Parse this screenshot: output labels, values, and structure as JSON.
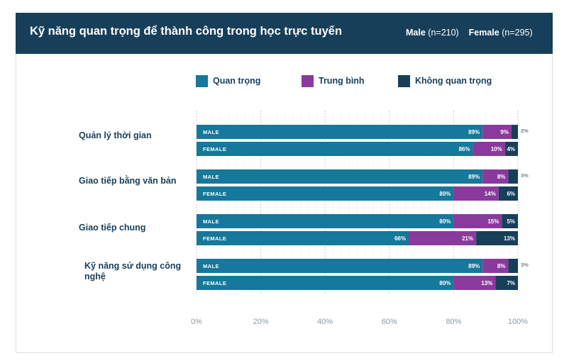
{
  "header": {
    "title": "Kỹ năng quan trọng để thành công trong học trực tuyến",
    "male_label": "Male",
    "male_n": "(n=210)",
    "female_label": "Female",
    "female_n": "(n=295)"
  },
  "colors": {
    "header_bg": "#173f59",
    "quan_trong": "#16789a",
    "trung_binh": "#8a3a9d",
    "khong_quan_trong": "#173f59",
    "label_text": "#173f59",
    "tick_text": "#8f9aa5"
  },
  "chart_data": {
    "type": "bar",
    "orientation": "horizontal",
    "stacked": true,
    "xlim": [
      0,
      100
    ],
    "xticks": [
      "0%",
      "20%",
      "40%",
      "60%",
      "80%",
      "100%"
    ],
    "grid": true,
    "legend_position": "top",
    "series": [
      {
        "name": "Quan trọng",
        "color": "#16789a"
      },
      {
        "name": "Trung bình",
        "color": "#8a3a9d"
      },
      {
        "name": "Không quan trọng",
        "color": "#173f59"
      }
    ],
    "categories": [
      {
        "label": "Quản lý thời gian",
        "rows": [
          {
            "group": "MALE",
            "values": [
              89,
              9,
              2
            ],
            "labels": [
              "89%",
              "9%",
              "2%"
            ]
          },
          {
            "group": "FEMALE",
            "values": [
              86,
              10,
              4
            ],
            "labels": [
              "86%",
              "10%",
              "4%"
            ]
          }
        ]
      },
      {
        "label": "Giao tiếp bằng văn bản",
        "rows": [
          {
            "group": "MALE",
            "values": [
              89,
              8,
              3
            ],
            "labels": [
              "89%",
              "8%",
              "3%"
            ]
          },
          {
            "group": "FEMALE",
            "values": [
              80,
              14,
              6
            ],
            "labels": [
              "80%",
              "14%",
              "6%"
            ]
          }
        ]
      },
      {
        "label": "Giao tiếp chung",
        "rows": [
          {
            "group": "MALE",
            "values": [
              80,
              15,
              5
            ],
            "labels": [
              "80%",
              "15%",
              "5%"
            ]
          },
          {
            "group": "FEMALE",
            "values": [
              66,
              21,
              13
            ],
            "labels": [
              "66%",
              "21%",
              "13%"
            ]
          }
        ]
      },
      {
        "label": "Kỹ năng sử dụng công nghệ",
        "rows": [
          {
            "group": "MALE",
            "values": [
              89,
              8,
              3
            ],
            "labels": [
              "89%",
              "8%",
              "3%"
            ]
          },
          {
            "group": "FEMALE",
            "values": [
              80,
              13,
              7
            ],
            "labels": [
              "80%",
              "13%",
              "7%"
            ]
          }
        ]
      }
    ]
  }
}
